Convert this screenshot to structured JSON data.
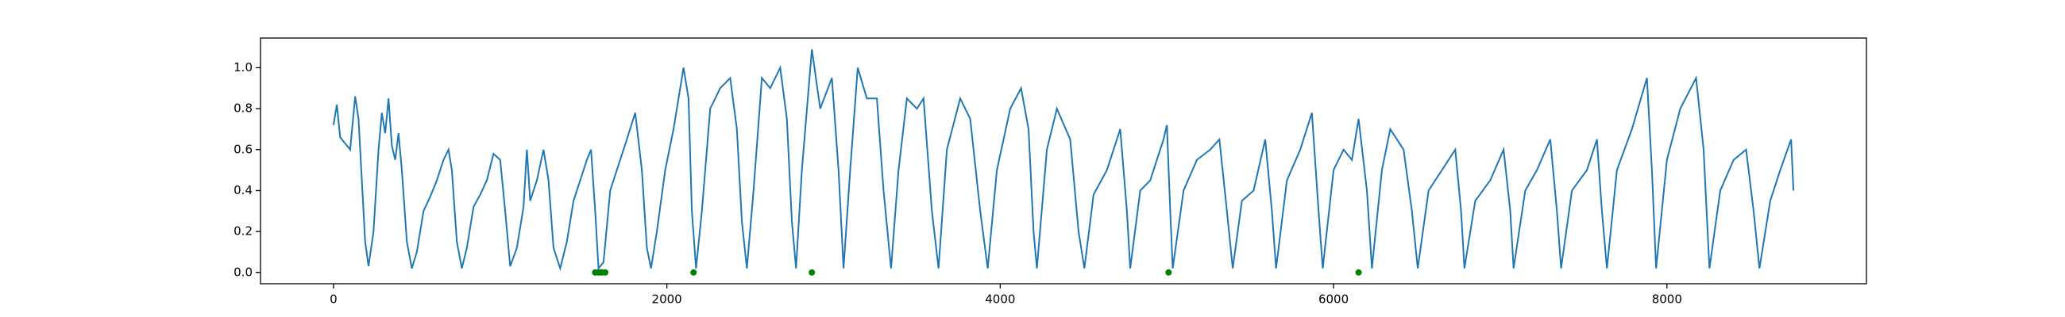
{
  "chart_data": {
    "type": "line",
    "xlim": [
      -438,
      9197
    ],
    "ylim": [
      -0.055,
      1.145
    ],
    "xticks": [
      0,
      2000,
      4000,
      6000,
      8000
    ],
    "yticks": [
      {
        "value": 0,
        "label": "0.0"
      },
      0.2,
      0.4,
      0.6,
      0.8,
      {
        "value": 1,
        "label": "1.0"
      }
    ],
    "grid": false,
    "series": [
      {
        "type": "line",
        "color": "#1f77b4",
        "x": [
          0,
          20,
          40,
          80,
          100,
          130,
          150,
          170,
          190,
          210,
          240,
          270,
          290,
          310,
          330,
          350,
          370,
          390,
          410,
          440,
          470,
          500,
          540,
          580,
          620,
          660,
          690,
          710,
          740,
          770,
          800,
          840,
          880,
          920,
          960,
          1000,
          1030,
          1060,
          1100,
          1140,
          1160,
          1180,
          1220,
          1260,
          1290,
          1320,
          1360,
          1400,
          1440,
          1480,
          1520,
          1545,
          1570,
          1590,
          1620,
          1660,
          1700,
          1760,
          1810,
          1850,
          1880,
          1905,
          1940,
          1990,
          2040,
          2100,
          2130,
          2150,
          2175,
          2210,
          2260,
          2320,
          2380,
          2420,
          2450,
          2480,
          2520,
          2570,
          2620,
          2680,
          2720,
          2750,
          2775,
          2810,
          2870,
          2920,
          2990,
          3030,
          3060,
          3100,
          3145,
          3200,
          3260,
          3300,
          3345,
          3390,
          3440,
          3500,
          3540,
          3590,
          3630,
          3680,
          3760,
          3820,
          3880,
          3925,
          3980,
          4060,
          4125,
          4170,
          4200,
          4220,
          4280,
          4340,
          4420,
          4470,
          4505,
          4560,
          4640,
          4720,
          4760,
          4780,
          4840,
          4900,
          4980,
          5000,
          5020,
          5035,
          5100,
          5180,
          5260,
          5315,
          5360,
          5395,
          5450,
          5520,
          5590,
          5630,
          5655,
          5720,
          5800,
          5870,
          5910,
          5935,
          6000,
          6060,
          6110,
          6150,
          6200,
          6230,
          6290,
          6340,
          6420,
          6470,
          6505,
          6570,
          6650,
          6730,
          6765,
          6785,
          6850,
          6940,
          7020,
          7060,
          7080,
          7150,
          7220,
          7300,
          7340,
          7365,
          7430,
          7520,
          7580,
          7610,
          7640,
          7700,
          7790,
          7880,
          7910,
          7935,
          8000,
          8080,
          8175,
          8220,
          8255,
          8320,
          8400,
          8475,
          8520,
          8555,
          8620,
          8680,
          8745,
          8759
        ],
        "values": [
          0.72,
          0.82,
          0.66,
          0.62,
          0.6,
          0.86,
          0.75,
          0.45,
          0.15,
          0.03,
          0.2,
          0.6,
          0.78,
          0.68,
          0.85,
          0.62,
          0.55,
          0.68,
          0.5,
          0.15,
          0.02,
          0.1,
          0.3,
          0.37,
          0.45,
          0.55,
          0.6,
          0.5,
          0.15,
          0.02,
          0.12,
          0.32,
          0.38,
          0.45,
          0.58,
          0.55,
          0.3,
          0.03,
          0.12,
          0.32,
          0.6,
          0.35,
          0.45,
          0.6,
          0.45,
          0.12,
          0.02,
          0.15,
          0.35,
          0.45,
          0.55,
          0.6,
          0.3,
          0.02,
          0.05,
          0.4,
          0.5,
          0.65,
          0.78,
          0.5,
          0.12,
          0.02,
          0.2,
          0.5,
          0.7,
          1.0,
          0.85,
          0.3,
          0.02,
          0.3,
          0.8,
          0.9,
          0.95,
          0.7,
          0.25,
          0.02,
          0.4,
          0.95,
          0.9,
          1.0,
          0.75,
          0.25,
          0.02,
          0.5,
          1.09,
          0.8,
          0.95,
          0.5,
          0.02,
          0.5,
          1.0,
          0.85,
          0.85,
          0.4,
          0.02,
          0.5,
          0.85,
          0.8,
          0.85,
          0.3,
          0.02,
          0.6,
          0.85,
          0.75,
          0.3,
          0.02,
          0.5,
          0.8,
          0.9,
          0.7,
          0.2,
          0.02,
          0.6,
          0.8,
          0.65,
          0.2,
          0.02,
          0.38,
          0.5,
          0.7,
          0.3,
          0.02,
          0.4,
          0.45,
          0.65,
          0.72,
          0.3,
          0.02,
          0.4,
          0.55,
          0.6,
          0.65,
          0.3,
          0.02,
          0.35,
          0.4,
          0.65,
          0.3,
          0.02,
          0.45,
          0.6,
          0.78,
          0.3,
          0.02,
          0.5,
          0.6,
          0.55,
          0.75,
          0.4,
          0.02,
          0.5,
          0.7,
          0.6,
          0.3,
          0.02,
          0.4,
          0.5,
          0.6,
          0.3,
          0.02,
          0.35,
          0.45,
          0.6,
          0.3,
          0.02,
          0.4,
          0.5,
          0.65,
          0.3,
          0.02,
          0.4,
          0.5,
          0.65,
          0.3,
          0.02,
          0.5,
          0.7,
          0.95,
          0.5,
          0.02,
          0.55,
          0.8,
          0.95,
          0.6,
          0.02,
          0.4,
          0.55,
          0.6,
          0.3,
          0.02,
          0.35,
          0.5,
          0.65,
          0.4
        ]
      },
      {
        "type": "scatter",
        "color": "#008000",
        "x": [
          1570,
          1590,
          1600,
          1610,
          1630,
          2160,
          2870,
          5010,
          6150
        ],
        "values": [
          0,
          0,
          0,
          0,
          0,
          0,
          0,
          0,
          0
        ]
      }
    ]
  }
}
